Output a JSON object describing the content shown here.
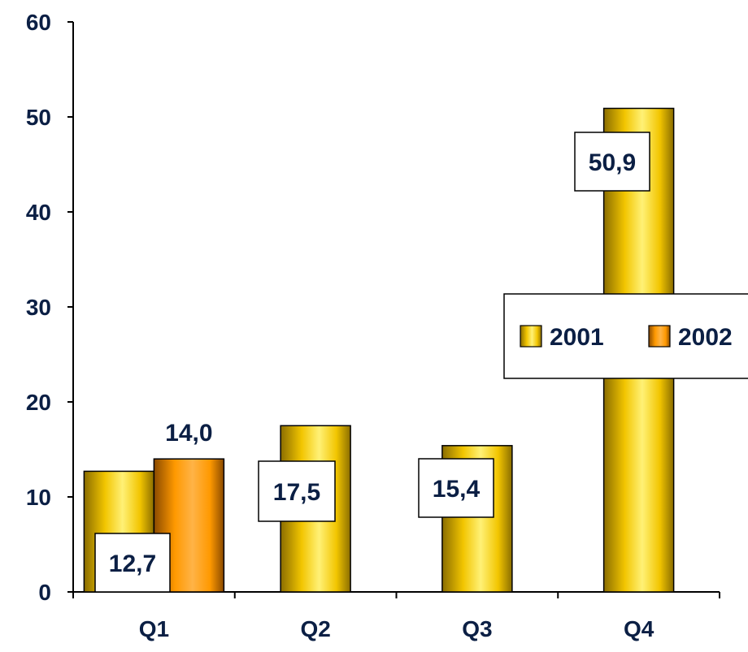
{
  "chart_data": {
    "type": "bar",
    "categories": [
      "Q1",
      "Q2",
      "Q3",
      "Q4"
    ],
    "series": [
      {
        "name": "2001",
        "values": [
          12.7,
          17.5,
          15.4,
          50.9
        ],
        "labels": [
          "12,7",
          "17,5",
          "15,4",
          "50,9"
        ]
      },
      {
        "name": "2002",
        "values": [
          14.0,
          null,
          null,
          null
        ],
        "labels": [
          "14,0",
          "",
          "",
          ""
        ]
      }
    ],
    "ylim": [
      0,
      60
    ],
    "yticks": [
      0,
      10,
      20,
      30,
      40,
      50,
      60
    ],
    "grid": false,
    "legend_position": "right",
    "colors": {
      "2001_light": "#fff176",
      "2001_mid": "#f2c500",
      "2001_dark": "#8a6d00",
      "2002_light": "#ffb347",
      "2002_mid": "#ff9900",
      "2002_dark": "#8a4a00",
      "text": "#0b1f44"
    }
  }
}
